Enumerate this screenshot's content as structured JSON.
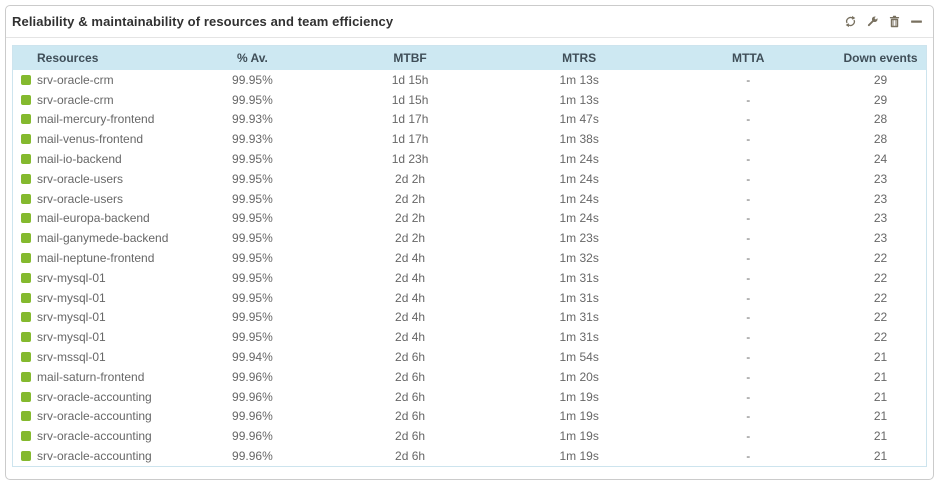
{
  "widget": {
    "title": "Reliability & maintainability of resources and team efficiency",
    "toolbar": {
      "refresh": "refresh-cycle-icon",
      "config": "wrench-icon",
      "delete": "trash-icon",
      "minimize": "minus-icon"
    }
  },
  "table": {
    "columns": [
      {
        "label": "Resources",
        "align": "left"
      },
      {
        "label": "% Av.",
        "align": "center"
      },
      {
        "label": "MTBF",
        "align": "center"
      },
      {
        "label": "MTRS",
        "align": "center"
      },
      {
        "label": "MTTA",
        "align": "center"
      },
      {
        "label": "Down events",
        "align": "center"
      }
    ],
    "rows": [
      {
        "status": "up",
        "resource": "srv-oracle-crm",
        "availability": "99.95%",
        "mtbf": "1d 15h",
        "mtrs": "1m 13s",
        "mtta": "-",
        "down_events": "29"
      },
      {
        "status": "up",
        "resource": "srv-oracle-crm",
        "availability": "99.95%",
        "mtbf": "1d 15h",
        "mtrs": "1m 13s",
        "mtta": "-",
        "down_events": "29"
      },
      {
        "status": "up",
        "resource": "mail-mercury-frontend",
        "availability": "99.93%",
        "mtbf": "1d 17h",
        "mtrs": "1m 47s",
        "mtta": "-",
        "down_events": "28"
      },
      {
        "status": "up",
        "resource": "mail-venus-frontend",
        "availability": "99.93%",
        "mtbf": "1d 17h",
        "mtrs": "1m 38s",
        "mtta": "-",
        "down_events": "28"
      },
      {
        "status": "up",
        "resource": "mail-io-backend",
        "availability": "99.95%",
        "mtbf": "1d 23h",
        "mtrs": "1m 24s",
        "mtta": "-",
        "down_events": "24"
      },
      {
        "status": "up",
        "resource": "srv-oracle-users",
        "availability": "99.95%",
        "mtbf": "2d 2h",
        "mtrs": "1m 24s",
        "mtta": "-",
        "down_events": "23"
      },
      {
        "status": "up",
        "resource": "srv-oracle-users",
        "availability": "99.95%",
        "mtbf": "2d 2h",
        "mtrs": "1m 24s",
        "mtta": "-",
        "down_events": "23"
      },
      {
        "status": "up",
        "resource": "mail-europa-backend",
        "availability": "99.95%",
        "mtbf": "2d 2h",
        "mtrs": "1m 24s",
        "mtta": "-",
        "down_events": "23"
      },
      {
        "status": "up",
        "resource": "mail-ganymede-backend",
        "availability": "99.95%",
        "mtbf": "2d 2h",
        "mtrs": "1m 23s",
        "mtta": "-",
        "down_events": "23"
      },
      {
        "status": "up",
        "resource": "mail-neptune-frontend",
        "availability": "99.95%",
        "mtbf": "2d 4h",
        "mtrs": "1m 32s",
        "mtta": "-",
        "down_events": "22"
      },
      {
        "status": "up",
        "resource": "srv-mysql-01",
        "availability": "99.95%",
        "mtbf": "2d 4h",
        "mtrs": "1m 31s",
        "mtta": "-",
        "down_events": "22"
      },
      {
        "status": "up",
        "resource": "srv-mysql-01",
        "availability": "99.95%",
        "mtbf": "2d 4h",
        "mtrs": "1m 31s",
        "mtta": "-",
        "down_events": "22"
      },
      {
        "status": "up",
        "resource": "srv-mysql-01",
        "availability": "99.95%",
        "mtbf": "2d 4h",
        "mtrs": "1m 31s",
        "mtta": "-",
        "down_events": "22"
      },
      {
        "status": "up",
        "resource": "srv-mysql-01",
        "availability": "99.95%",
        "mtbf": "2d 4h",
        "mtrs": "1m 31s",
        "mtta": "-",
        "down_events": "22"
      },
      {
        "status": "up",
        "resource": "srv-mssql-01",
        "availability": "99.94%",
        "mtbf": "2d 6h",
        "mtrs": "1m 54s",
        "mtta": "-",
        "down_events": "21"
      },
      {
        "status": "up",
        "resource": "mail-saturn-frontend",
        "availability": "99.96%",
        "mtbf": "2d 6h",
        "mtrs": "1m 20s",
        "mtta": "-",
        "down_events": "21"
      },
      {
        "status": "up",
        "resource": "srv-oracle-accounting",
        "availability": "99.96%",
        "mtbf": "2d 6h",
        "mtrs": "1m 19s",
        "mtta": "-",
        "down_events": "21"
      },
      {
        "status": "up",
        "resource": "srv-oracle-accounting",
        "availability": "99.96%",
        "mtbf": "2d 6h",
        "mtrs": "1m 19s",
        "mtta": "-",
        "down_events": "21"
      },
      {
        "status": "up",
        "resource": "srv-oracle-accounting",
        "availability": "99.96%",
        "mtbf": "2d 6h",
        "mtrs": "1m 19s",
        "mtta": "-",
        "down_events": "21"
      },
      {
        "status": "up",
        "resource": "srv-oracle-accounting",
        "availability": "99.96%",
        "mtbf": "2d 6h",
        "mtrs": "1m 19s",
        "mtta": "-",
        "down_events": "21"
      }
    ]
  },
  "colors": {
    "header_bg": "#cde8f2",
    "header_text": "#3f4e58",
    "row_text": "#676767",
    "status_up": "#84b92e",
    "title_text": "#313131",
    "table_border": "#cde4ee",
    "card_border": "#cbcbcb",
    "separator": "#e4e4e4",
    "icon": "#78705f"
  }
}
